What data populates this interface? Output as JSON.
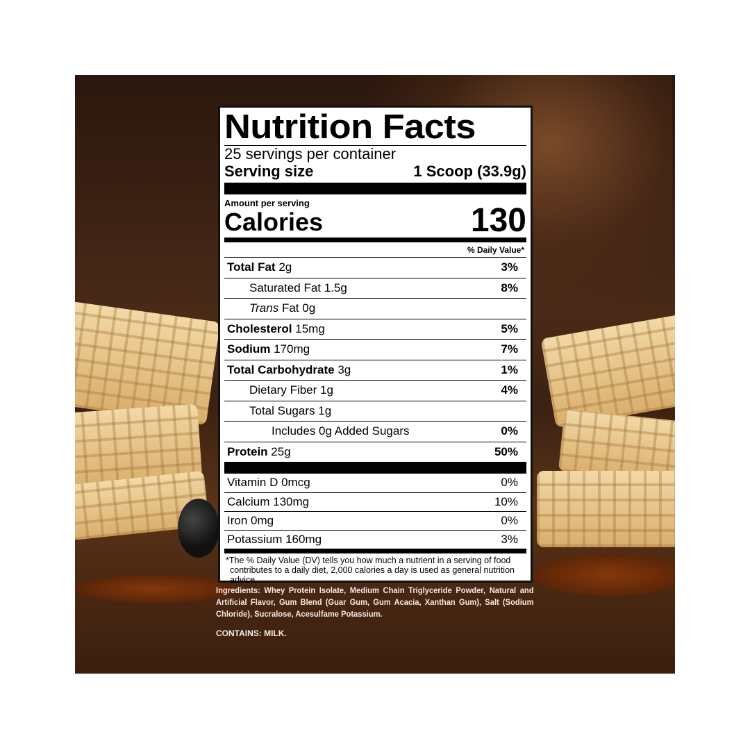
{
  "label": {
    "title": "Nutrition Facts",
    "servings": "25 servings per container",
    "serving_size_label": "Serving size",
    "serving_size_value": "1 Scoop (33.9g)",
    "amount_per_serving": "Amount per serving",
    "calories_label": "Calories",
    "calories_value": "130",
    "dv_header": "% Daily Value*",
    "nutrients": [
      {
        "name": "Total Fat",
        "amount": "2g",
        "dv": "3%",
        "bold": true,
        "indent": 0
      },
      {
        "name": "Saturated Fat",
        "amount": "1.5g",
        "dv": "8%",
        "bold": false,
        "indent": 1
      },
      {
        "name": "Trans",
        "name_suffix": "Fat",
        "amount": "0g",
        "dv": "",
        "bold": false,
        "italic": true,
        "indent": 1
      },
      {
        "name": "Cholesterol",
        "amount": "15mg",
        "dv": "5%",
        "bold": true,
        "indent": 0
      },
      {
        "name": "Sodium",
        "amount": "170mg",
        "dv": "7%",
        "bold": true,
        "indent": 0
      },
      {
        "name": "Total Carbohydrate",
        "amount": "3g",
        "dv": "1%",
        "bold": true,
        "indent": 0
      },
      {
        "name": "Dietary Fiber",
        "amount": "1g",
        "dv": "4%",
        "bold": false,
        "indent": 1
      },
      {
        "name": "Total Sugars",
        "amount": "1g",
        "dv": "",
        "bold": false,
        "indent": 1
      },
      {
        "name": "Includes 0g Added Sugars",
        "amount": "",
        "dv": "0%",
        "bold": false,
        "indent": 2
      },
      {
        "name": "Protein",
        "amount": "25g",
        "dv": "50%",
        "bold": true,
        "indent": 0
      }
    ],
    "vitamins": [
      {
        "name": "Vitamin D 0mcg",
        "dv": "0%"
      },
      {
        "name": "Calcium 130mg",
        "dv": "10%"
      },
      {
        "name": "Iron 0mg",
        "dv": "0%"
      },
      {
        "name": "Potassium 160mg",
        "dv": "3%"
      }
    ],
    "footnote": "*The % Daily Value (DV) tells you how much a nutrient in a serving of food contributes to a daily diet, 2,000 calories a day is used as general nutrition advice."
  },
  "ingredients": "Ingredients: Whey Protein Isolate, Medium Chain Triglyceride Powder, Natural and Artificial Flavor, Gum Blend (Guar Gum, Gum Acacia, Xanthan Gum), Salt (Sodium Chloride), Sucralose, Acesulfame Potassium.",
  "contains": "CONTAINS: MILK."
}
